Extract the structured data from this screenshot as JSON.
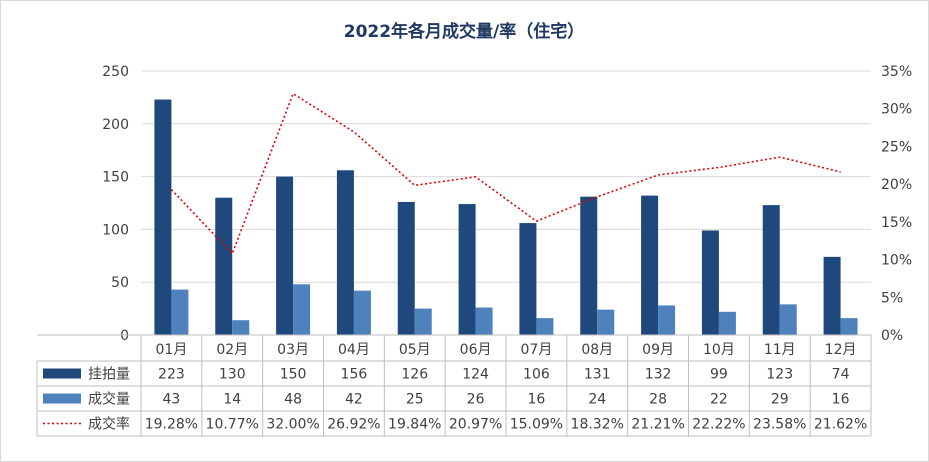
{
  "chart_data": {
    "type": "bar",
    "title": "2022年各月成交量/率（住宅）",
    "categories": [
      "01月",
      "02月",
      "03月",
      "04月",
      "05月",
      "06月",
      "07月",
      "08月",
      "09月",
      "10月",
      "11月",
      "12月"
    ],
    "series": [
      {
        "name": "挂拍量",
        "type": "bar",
        "axis": "left",
        "color": "#1f497d",
        "values": [
          223,
          130,
          150,
          156,
          126,
          124,
          106,
          131,
          132,
          99,
          123,
          74
        ]
      },
      {
        "name": "成交量",
        "type": "bar",
        "axis": "left",
        "color": "#4f81bd",
        "values": [
          43,
          14,
          48,
          42,
          25,
          26,
          16,
          24,
          28,
          22,
          29,
          16
        ]
      },
      {
        "name": "成交率",
        "type": "line",
        "axis": "right",
        "color": "#e00000",
        "line_style": "dotted",
        "values": [
          19.28,
          10.77,
          32.0,
          26.92,
          19.84,
          20.97,
          15.09,
          18.32,
          21.21,
          22.22,
          23.58,
          21.62
        ],
        "labels": [
          "19.28%",
          "10.77%",
          "32.00%",
          "26.92%",
          "19.84%",
          "20.97%",
          "15.09%",
          "18.32%",
          "21.21%",
          "22.22%",
          "23.58%",
          "21.62%"
        ]
      }
    ],
    "y_left": {
      "min": 0,
      "max": 250,
      "ticks": [
        "0",
        "50",
        "100",
        "150",
        "200",
        "250"
      ]
    },
    "y_right": {
      "min": 0,
      "max": 35,
      "ticks": [
        "0%",
        "5%",
        "10%",
        "15%",
        "20%",
        "25%",
        "30%",
        "35%"
      ]
    },
    "grid": true,
    "data_table": true
  }
}
